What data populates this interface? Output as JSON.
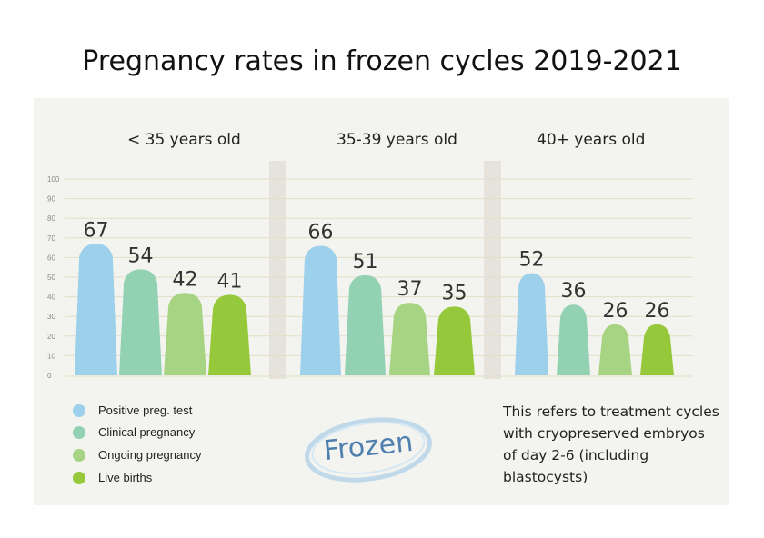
{
  "title": "Pregnancy rates in frozen cycles 2019-2021",
  "chart_data": {
    "type": "bar",
    "groups": [
      "< 35 years old",
      "35-39 years old",
      "40+ years old"
    ],
    "series": [
      {
        "name": "Positive preg. test",
        "color": "#9dd0ea",
        "values": [
          67,
          66,
          52
        ]
      },
      {
        "name": "Clinical pregnancy",
        "color": "#93d1b3",
        "values": [
          54,
          51,
          36
        ]
      },
      {
        "name": "Ongoing pregnancy",
        "color": "#a6d482",
        "values": [
          42,
          37,
          26
        ]
      },
      {
        "name": "Live births",
        "color": "#95c83a",
        "values": [
          41,
          35,
          26
        ]
      }
    ],
    "yticks": [
      0,
      10,
      20,
      30,
      40,
      50,
      60,
      70,
      80,
      90,
      100
    ],
    "ylim": [
      0,
      100
    ],
    "grid": true,
    "legend": "bottom-left"
  },
  "note": "This refers to treatment cycles with cryopreserved embryos of day 2-6 (including blastocysts)",
  "logo_text": "Frozen"
}
